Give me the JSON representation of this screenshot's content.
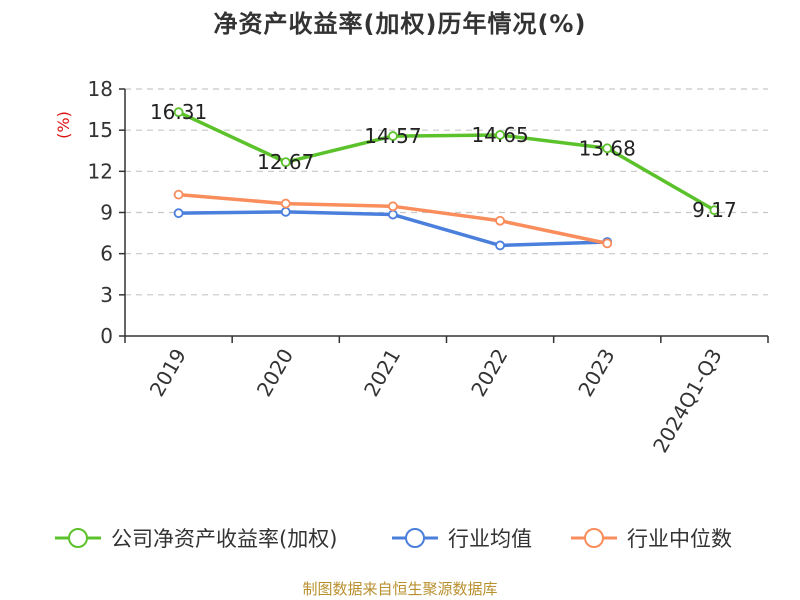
{
  "title": "净资产收益率(加权)历年情况(%)",
  "source": "制图数据来自恒生聚源数据库",
  "chart_data": {
    "type": "line",
    "ylabel": "(%)",
    "ylim": [
      0,
      18
    ],
    "yticks": [
      0,
      3,
      6,
      9,
      12,
      15,
      18
    ],
    "grid": true,
    "legend_position": "bottom",
    "categories": [
      "2019",
      "2020",
      "2021",
      "2022",
      "2023",
      "2024Q1-Q3"
    ],
    "series": [
      {
        "name": "公司净资产收益率(加权)",
        "color": "#5cc22c",
        "values": [
          16.31,
          12.67,
          14.57,
          14.65,
          13.68,
          9.17
        ],
        "labels": [
          "16.31",
          "12.67",
          "14.57",
          "14.65",
          "13.68",
          "9.17"
        ],
        "show_labels": true
      },
      {
        "name": "行业均值",
        "color": "#4a7fdc",
        "values": [
          8.95,
          9.05,
          8.85,
          6.6,
          6.85,
          null
        ],
        "show_labels": false
      },
      {
        "name": "行业中位数",
        "color": "#f98d5c",
        "values": [
          10.3,
          9.65,
          9.45,
          8.4,
          6.75,
          null
        ],
        "show_labels": false
      }
    ]
  }
}
